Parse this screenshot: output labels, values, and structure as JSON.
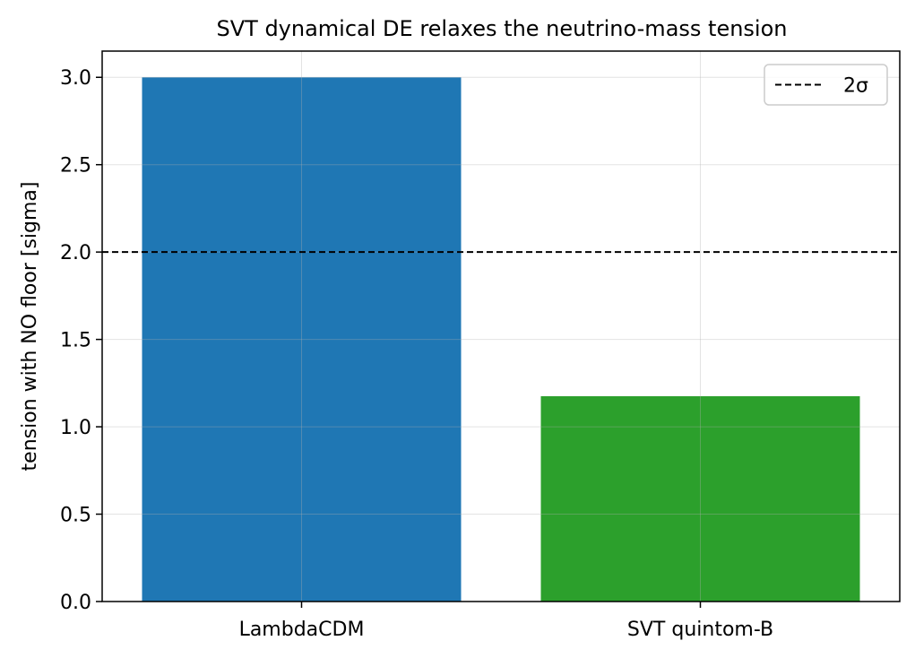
{
  "chart_data": {
    "type": "bar",
    "title": "SVT dynamical DE relaxes the neutrino-mass tension",
    "xlabel": "",
    "ylabel": "tension with NO floor [sigma]",
    "categories": [
      "LambdaCDM",
      "SVT quintom-B"
    ],
    "values": [
      3.0,
      1.175
    ],
    "colors": [
      "#1f77b4",
      "#2ca02c"
    ],
    "ylim": [
      0,
      3.15
    ],
    "yticks": [
      "0.0",
      "0.5",
      "1.0",
      "1.5",
      "2.0",
      "2.5",
      "3.0"
    ],
    "reference_line": {
      "y": 2.0,
      "label": "2σ",
      "style": "dashed",
      "color": "#000000"
    },
    "grid": true,
    "legend_position": "top-right"
  }
}
